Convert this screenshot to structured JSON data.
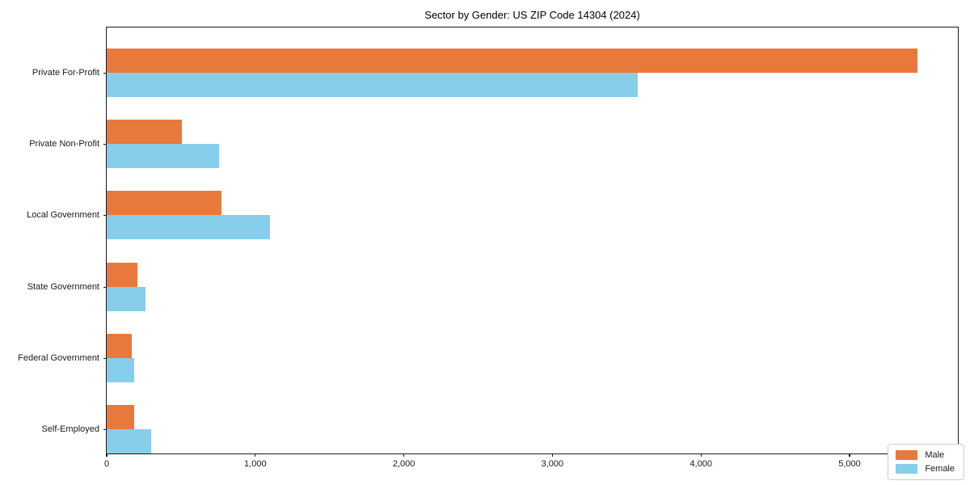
{
  "title": "Sector by Gender: US ZIP Code 14304 (2024)",
  "chart_data": {
    "type": "bar",
    "orientation": "horizontal",
    "title": "Sector by Gender: US ZIP Code 14304 (2024)",
    "categories": [
      "Private For-Profit",
      "Private Non-Profit",
      "Local Government",
      "State Government",
      "Federal Government",
      "Self-Employed"
    ],
    "series": [
      {
        "name": "Male",
        "color": "#E8793C",
        "values": [
          5455,
          505,
          772,
          207,
          168,
          185
        ]
      },
      {
        "name": "Female",
        "color": "#87CEEB",
        "values": [
          3575,
          757,
          1100,
          260,
          186,
          299
        ]
      }
    ],
    "xlabel": "",
    "ylabel": "",
    "xlim": [
      0,
      5740
    ],
    "x_ticks": [
      0,
      1000,
      2000,
      3000,
      4000,
      5000
    ],
    "x_tick_labels": [
      "0",
      "1,000",
      "2,000",
      "3,000",
      "4,000",
      "5,000"
    ],
    "grid": false,
    "legend_position": "lower right",
    "background_color": "#ffffff",
    "axis_color": "#1a1a1a"
  }
}
